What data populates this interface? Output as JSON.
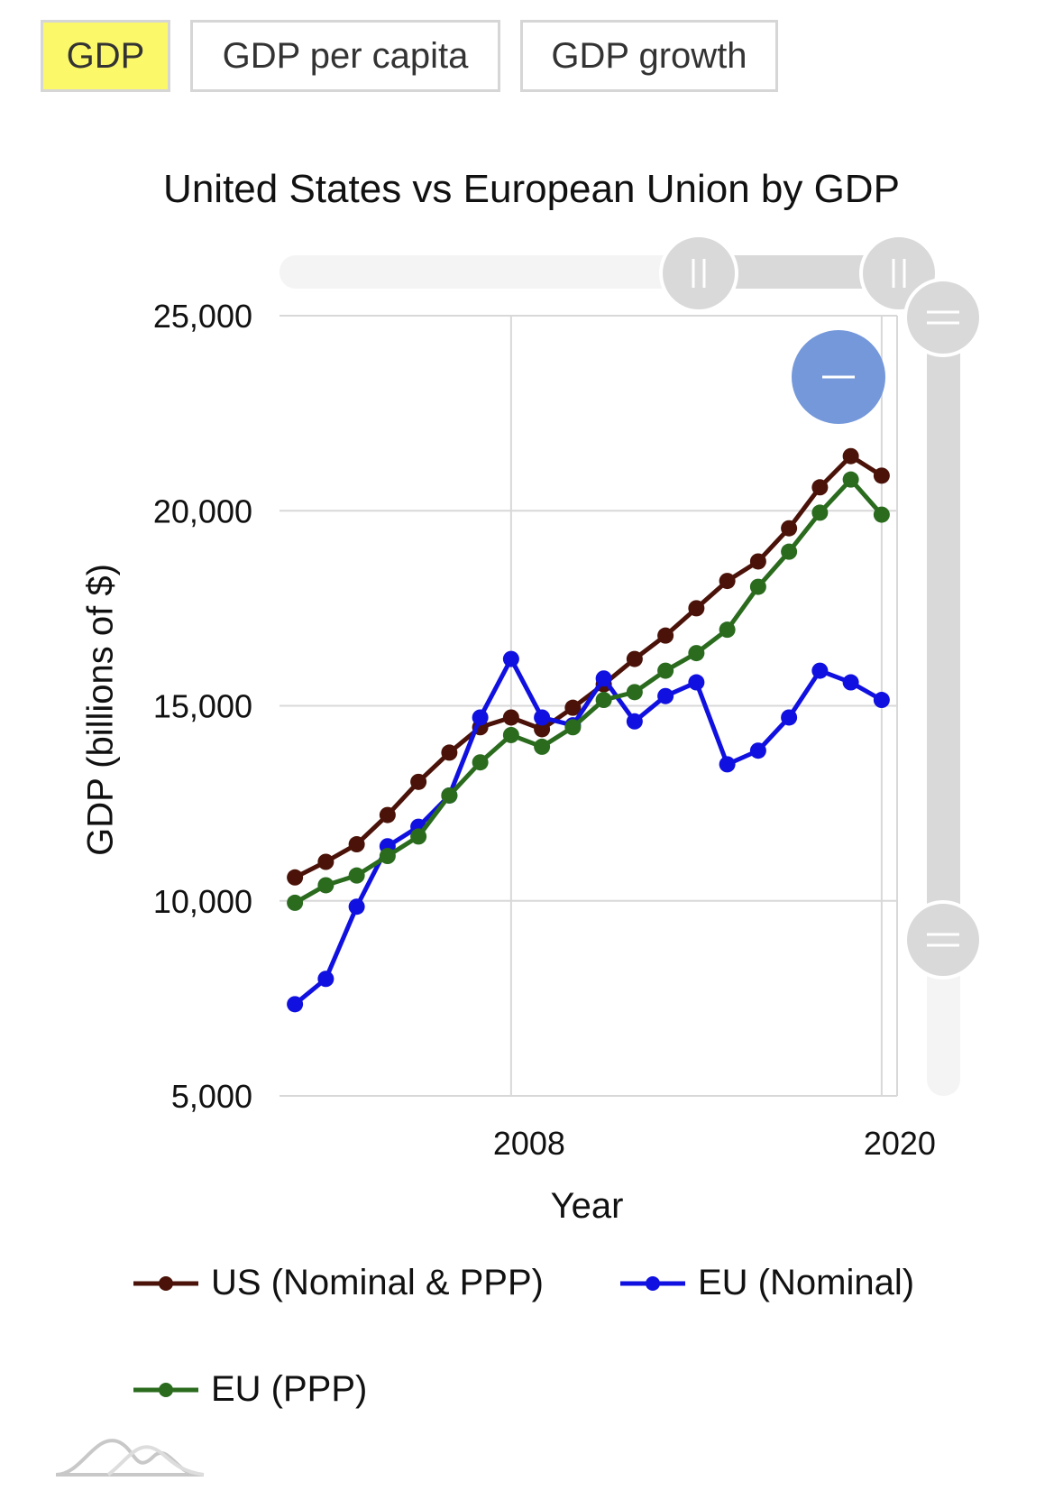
{
  "tabs": [
    {
      "label": "GDP",
      "active": true
    },
    {
      "label": "GDP per capita",
      "active": false
    },
    {
      "label": "GDP growth",
      "active": false
    }
  ],
  "colors": {
    "accent_tab": "#fbf86a",
    "us": "#4a1208",
    "eu_nominal": "#1010e0",
    "eu_ppp": "#2a6b1e",
    "zoom_button": "#7498da",
    "slider": "#d9d9d9"
  },
  "chart_data": {
    "type": "line",
    "title": "United States vs European Union by GDP",
    "xlabel": "Year",
    "ylabel": "GDP (billions of $)",
    "x_ticks": [
      "2008",
      "2020"
    ],
    "y_ticks": [
      "5,000",
      "10,000",
      "15,000",
      "20,000",
      "25,000"
    ],
    "y_tick_values": [
      5000,
      10000,
      15000,
      20000,
      25000
    ],
    "ylim": [
      5000,
      25000
    ],
    "xlim": [
      2000.5,
      2020.5
    ],
    "grid": true,
    "legend_position": "bottom",
    "x": [
      2001,
      2002,
      2003,
      2004,
      2005,
      2006,
      2007,
      2008,
      2009,
      2010,
      2011,
      2012,
      2013,
      2014,
      2015,
      2016,
      2017,
      2018,
      2019,
      2020
    ],
    "series": [
      {
        "name": "US (Nominal & PPP)",
        "color": "#4a1208",
        "values": [
          10600,
          11000,
          11450,
          12200,
          13050,
          13800,
          14450,
          14700,
          14400,
          14950,
          15550,
          16200,
          16800,
          17500,
          18200,
          18700,
          19550,
          20600,
          21400,
          20900
        ]
      },
      {
        "name": "EU (Nominal)",
        "color": "#1010e0",
        "values": [
          7350,
          8000,
          9850,
          11400,
          11900,
          12700,
          14700,
          16200,
          14700,
          14500,
          15700,
          14600,
          15250,
          15600,
          13500,
          13850,
          14700,
          15900,
          15600,
          15150
        ]
      },
      {
        "name": "EU (PPP)",
        "color": "#2a6b1e",
        "values": [
          9950,
          10400,
          10650,
          11150,
          11650,
          12700,
          13550,
          14250,
          13950,
          14450,
          15150,
          15350,
          15900,
          16350,
          16950,
          18050,
          18950,
          19950,
          20800,
          19900
        ]
      }
    ]
  }
}
